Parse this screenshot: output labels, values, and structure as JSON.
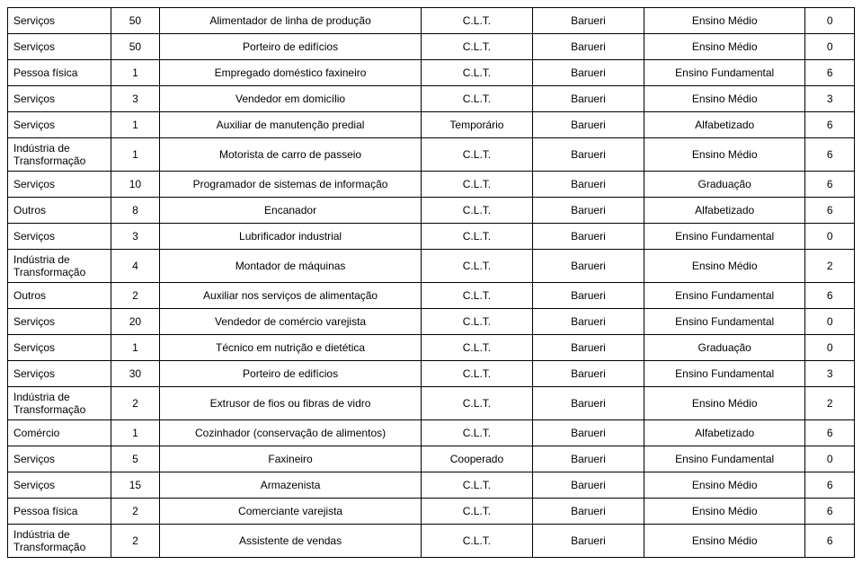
{
  "table": {
    "columns": [
      {
        "key": "sector",
        "width": "11%",
        "align": "left"
      },
      {
        "key": "qty",
        "width": "4.5%",
        "align": "center"
      },
      {
        "key": "role",
        "width": "30%",
        "align": "center"
      },
      {
        "key": "contract",
        "width": "12%",
        "align": "center"
      },
      {
        "key": "city",
        "width": "12%",
        "align": "center"
      },
      {
        "key": "education",
        "width": "18%",
        "align": "center"
      },
      {
        "key": "n",
        "width": "4.5%",
        "align": "center"
      }
    ],
    "rows": [
      [
        "Serviços",
        "50",
        "Alimentador de linha de produção",
        "C.L.T.",
        "Barueri",
        "Ensino Médio",
        "0"
      ],
      [
        "Serviços",
        "50",
        "Porteiro de edifícios",
        "C.L.T.",
        "Barueri",
        "Ensino Médio",
        "0"
      ],
      [
        "Pessoa física",
        "1",
        "Empregado doméstico  faxineiro",
        "C.L.T.",
        "Barueri",
        "Ensino Fundamental",
        "6"
      ],
      [
        "Serviços",
        "3",
        "Vendedor em domicílio",
        "C.L.T.",
        "Barueri",
        "Ensino Médio",
        "3"
      ],
      [
        "Serviços",
        "1",
        "Auxiliar de manutenção predial",
        "Temporário",
        "Barueri",
        "Alfabetizado",
        "6"
      ],
      [
        "Indústria de Transformação",
        "1",
        "Motorista de carro de passeio",
        "C.L.T.",
        "Barueri",
        "Ensino Médio",
        "6"
      ],
      [
        "Serviços",
        "10",
        "Programador de sistemas de informação",
        "C.L.T.",
        "Barueri",
        "Graduação",
        "6"
      ],
      [
        "Outros",
        "8",
        "Encanador",
        "C.L.T.",
        "Barueri",
        "Alfabetizado",
        "6"
      ],
      [
        "Serviços",
        "3",
        "Lubrificador industrial",
        "C.L.T.",
        "Barueri",
        "Ensino Fundamental",
        "0"
      ],
      [
        "Indústria de Transformação",
        "4",
        "Montador de máquinas",
        "C.L.T.",
        "Barueri",
        "Ensino Médio",
        "2"
      ],
      [
        "Outros",
        "2",
        "Auxiliar nos serviços de alimentação",
        "C.L.T.",
        "Barueri",
        "Ensino Fundamental",
        "6"
      ],
      [
        "Serviços",
        "20",
        "Vendedor de comércio varejista",
        "C.L.T.",
        "Barueri",
        "Ensino Fundamental",
        "0"
      ],
      [
        "Serviços",
        "1",
        "Técnico em nutrição e dietética",
        "C.L.T.",
        "Barueri",
        "Graduação",
        "0"
      ],
      [
        "Serviços",
        "30",
        "Porteiro de edifícios",
        "C.L.T.",
        "Barueri",
        "Ensino Fundamental",
        "3"
      ],
      [
        "Indústria de Transformação",
        "2",
        "Extrusor de fios ou fibras de vidro",
        "C.L.T.",
        "Barueri",
        "Ensino Médio",
        "2"
      ],
      [
        "Comércio",
        "1",
        "Cozinhador (conservação de alimentos)",
        "C.L.T.",
        "Barueri",
        "Alfabetizado",
        "6"
      ],
      [
        "Serviços",
        "5",
        "Faxineiro",
        "Cooperado",
        "Barueri",
        "Ensino Fundamental",
        "0"
      ],
      [
        "Serviços",
        "15",
        "Armazenista",
        "C.L.T.",
        "Barueri",
        "Ensino Médio",
        "6"
      ],
      [
        "Pessoa física",
        "2",
        "Comerciante varejista",
        "C.L.T.",
        "Barueri",
        "Ensino Médio",
        "6"
      ],
      [
        "Indústria de Transformação",
        "2",
        "Assistente de vendas",
        "C.L.T.",
        "Barueri",
        "Ensino Médio",
        "6"
      ]
    ],
    "border_color": "#000000",
    "background_color": "#ffffff",
    "font_size": 12,
    "font_family": "Arial"
  }
}
